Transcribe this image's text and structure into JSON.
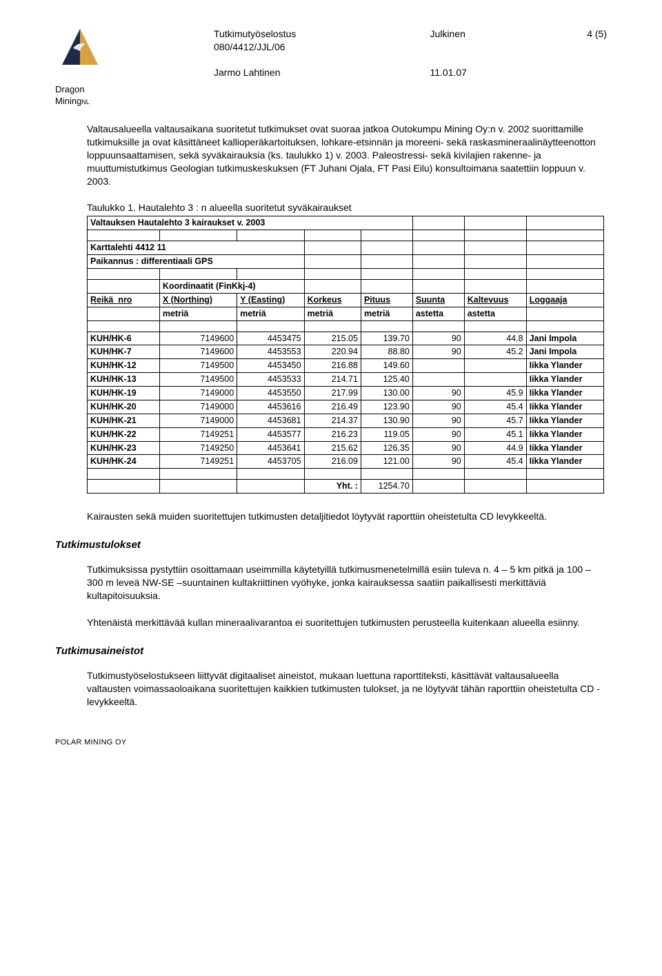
{
  "page_number": "4 (5)",
  "header": {
    "logo_top": "Dragon",
    "logo_bottom": "Mining",
    "logo_nl": "NL",
    "doc_title_l1": "Tutkimutyöselostus",
    "doc_title_l2": "080/4412/JJL/06",
    "doc_class": "Julkinen",
    "author": "Jarmo Lahtinen",
    "date": "11.01.07",
    "logo_colors": {
      "dark_navy": "#1d2b4a",
      "gold": "#d9a23e",
      "white": "#ffffff"
    }
  },
  "body": {
    "para1": "Valtausalueella valtausaikana suoritetut tutkimukset ovat suoraa jatkoa Outokumpu Mining Oy:n v. 2002 suorittamille tutkimuksille ja ovat käsittäneet kallioperäkartoituksen, lohkare-etsinnän ja moreeni- sekä raskasmineraalinäytteenotton loppuunsaattamisen, sekä syväkairauksia (ks. taulukko 1) v. 2003. Paleostressi- sekä kivilajien rakenne- ja muuttumistutkimus Geologian tutkimuskeskuksen (FT Juhani Ojala, FT Pasi Eilu) konsultoimana saatettiin loppuun v. 2003.",
    "table_label": "Taulukko 1. Hautalehto 3 : n alueella suoritetut syväkairaukset",
    "para2": "Kairausten sekä muiden suoritettujen tutkimusten detaljitiedot löytyvät raporttiin oheistetulta CD levykkeeltä.",
    "h_results": "Tutkimustulokset",
    "para3": "Tutkimuksissa pystyttiin osoittamaan useimmilla käytetyillä tutkimusmenetelmillä esiin tuleva n. 4 – 5 km pitkä ja 100 – 300 m leveä NW-SE –suuntainen kultakriittinen vyöhyke, jonka kairauksessa saatiin paikallisesti merkittäviä kultapitoisuuksia.",
    "para4": "Yhtenäistä merkittävää kullan mineraalivarantoa ei suoritettujen tutkimusten perusteella kuitenkaan alueella esiinny.",
    "h_materials": "Tutkimusaineistot",
    "para5": "Tutkimustyöselostukseen liittyvät digitaaliset aineistot, mukaan luettuna raporttiteksti, käsittävät valtausalueella valtausten voimassaoloaikana suoritettujen kaikkien tutkimusten tulokset, ja ne löytyvät tähän raporttiin oheistetulta CD -levykkeeltä."
  },
  "table": {
    "type": "table",
    "background_color": "#ffffff",
    "border_color": "#000000",
    "font_size_pt": 10,
    "col_widths_pct": [
      14,
      15,
      13,
      11,
      10,
      10,
      12,
      15
    ],
    "title": "Valtauksen Hautalehto 3 kairaukset v. 2003",
    "meta_l1": "Karttalehti 4412 11",
    "meta_l2": "Paikannus : differentiaali GPS",
    "coord_header": "Koordinaatit (FinKkj-4)",
    "h_reika": "Reikä_nro",
    "h_x": "X (Northing)",
    "h_y": "Y (Easting)",
    "h_korkeus": "Korkeus",
    "h_pituus": "Pituus",
    "h_suunta": "Suunta",
    "h_kaltevuus": "Kaltevuus",
    "h_loggaaja": "Loggaaja",
    "u_metria": "metriä",
    "u_astetta": "astetta",
    "rows": [
      {
        "id": "KUH/HK-6",
        "x": "7149600",
        "y": "4453475",
        "k": "215.05",
        "p": "139.70",
        "s": "90",
        "kv": "44.8",
        "lg": "Jani Impola"
      },
      {
        "id": "KUH/HK-7",
        "x": "7149600",
        "y": "4453553",
        "k": "220.94",
        "p": "88.80",
        "s": "90",
        "kv": "45.2",
        "lg": "Jani Impola"
      },
      {
        "id": "KUH/HK-12",
        "x": "7149500",
        "y": "4453450",
        "k": "216.88",
        "p": "149.60",
        "s": "",
        "kv": "",
        "lg": "Iikka Ylander"
      },
      {
        "id": "KUH/HK-13",
        "x": "7149500",
        "y": "4453533",
        "k": "214.71",
        "p": "125.40",
        "s": "",
        "kv": "",
        "lg": "Iikka Ylander"
      },
      {
        "id": "KUH/HK-19",
        "x": "7149000",
        "y": "4453550",
        "k": "217.99",
        "p": "130.00",
        "s": "90",
        "kv": "45.9",
        "lg": "Iikka Ylander"
      },
      {
        "id": "KUH/HK-20",
        "x": "7149000",
        "y": "4453616",
        "k": "216.49",
        "p": "123.90",
        "s": "90",
        "kv": "45.4",
        "lg": "Iikka Ylander"
      },
      {
        "id": "KUH/HK-21",
        "x": "7149000",
        "y": "4453681",
        "k": "214.37",
        "p": "130.90",
        "s": "90",
        "kv": "45.7",
        "lg": "Iikka Ylander"
      },
      {
        "id": "KUH/HK-22",
        "x": "7149251",
        "y": "4453577",
        "k": "216.23",
        "p": "119.05",
        "s": "90",
        "kv": "45.1",
        "lg": "Iikka Ylander"
      },
      {
        "id": "KUH/HK-23",
        "x": "7149250",
        "y": "4453641",
        "k": "215.62",
        "p": "126.35",
        "s": "90",
        "kv": "44.9",
        "lg": "Iikka Ylander"
      },
      {
        "id": "KUH/HK-24",
        "x": "7149251",
        "y": "4453705",
        "k": "216.09",
        "p": "121.00",
        "s": "90",
        "kv": "45.4",
        "lg": "Iikka Ylander"
      }
    ],
    "yht_label": "Yht. :",
    "yht_value": "1254.70"
  },
  "footer": "POLAR MINING OY"
}
